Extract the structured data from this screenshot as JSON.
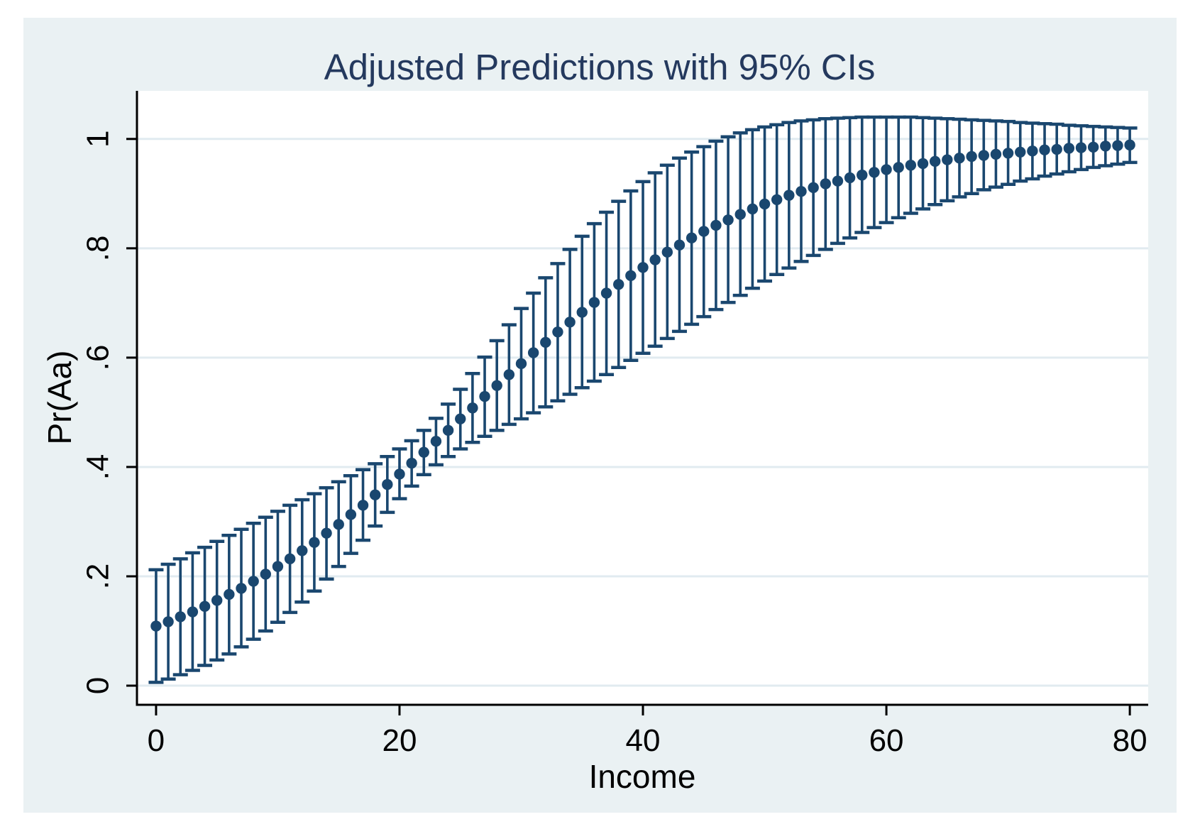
{
  "style": {
    "page_bg": "#ffffff",
    "figure_bg": "#eaf1f3",
    "plot_bg": "#ffffff",
    "grid_color": "#e1ebf0",
    "axis_color": "#000000",
    "tick_label_color": "#000000",
    "title_color": "#24395e",
    "data_color": "#1a476f"
  },
  "chart_data": {
    "type": "scatter",
    "subtype": "point-estimates-with-error-bars",
    "title": "Adjusted Predictions with 95% CIs",
    "xlabel": "Income",
    "ylabel": "Pr(Aa)",
    "ci_level": "95%",
    "grid": "horizontal",
    "legend": "none",
    "xlim": [
      -1.57,
      81.51
    ],
    "ylim": [
      -0.035,
      1.088
    ],
    "x_ticks": [
      0,
      20,
      40,
      60,
      80
    ],
    "x_tick_labels": [
      "0",
      "20",
      "40",
      "60",
      "80"
    ],
    "y_ticks": [
      0,
      0.2,
      0.4,
      0.6,
      0.8,
      1
    ],
    "y_tick_labels": [
      "0",
      ".2",
      ".4",
      ".6",
      ".8",
      "1"
    ],
    "series": [
      {
        "name": "Adjusted Prediction",
        "x": [
          0,
          1,
          2,
          3,
          4,
          5,
          6,
          7,
          8,
          9,
          10,
          11,
          12,
          13,
          14,
          15,
          16,
          17,
          18,
          19,
          20,
          21,
          22,
          23,
          24,
          25,
          26,
          27,
          28,
          29,
          30,
          31,
          32,
          33,
          34,
          35,
          36,
          37,
          38,
          39,
          40,
          41,
          42,
          43,
          44,
          45,
          46,
          47,
          48,
          49,
          50,
          51,
          52,
          53,
          54,
          55,
          56,
          57,
          58,
          59,
          60,
          61,
          62,
          63,
          64,
          65,
          66,
          67,
          68,
          69,
          70,
          71,
          72,
          73,
          74,
          75,
          76,
          77,
          78,
          79,
          80
        ],
        "y": [
          0.109,
          0.117,
          0.126,
          0.135,
          0.145,
          0.156,
          0.167,
          0.178,
          0.191,
          0.204,
          0.218,
          0.232,
          0.247,
          0.262,
          0.279,
          0.295,
          0.313,
          0.33,
          0.349,
          0.368,
          0.387,
          0.407,
          0.427,
          0.447,
          0.467,
          0.488,
          0.508,
          0.529,
          0.549,
          0.569,
          0.589,
          0.609,
          0.628,
          0.647,
          0.665,
          0.683,
          0.701,
          0.718,
          0.734,
          0.75,
          0.765,
          0.779,
          0.793,
          0.806,
          0.819,
          0.831,
          0.842,
          0.852,
          0.862,
          0.872,
          0.881,
          0.889,
          0.897,
          0.904,
          0.911,
          0.918,
          0.923,
          0.929,
          0.934,
          0.939,
          0.944,
          0.948,
          0.952,
          0.955,
          0.959,
          0.962,
          0.965,
          0.968,
          0.97,
          0.972,
          0.974,
          0.976,
          0.978,
          0.98,
          0.981,
          0.983,
          0.984,
          0.985,
          0.987,
          0.988,
          0.989
        ],
        "ci_low": [
          0.006,
          0.012,
          0.02,
          0.028,
          0.037,
          0.047,
          0.058,
          0.071,
          0.085,
          0.1,
          0.116,
          0.134,
          0.153,
          0.173,
          0.195,
          0.218,
          0.242,
          0.266,
          0.292,
          0.317,
          0.342,
          0.365,
          0.386,
          0.404,
          0.419,
          0.433,
          0.445,
          0.456,
          0.467,
          0.478,
          0.488,
          0.499,
          0.51,
          0.521,
          0.533,
          0.545,
          0.557,
          0.569,
          0.582,
          0.595,
          0.608,
          0.621,
          0.635,
          0.648,
          0.661,
          0.675,
          0.688,
          0.701,
          0.714,
          0.727,
          0.74,
          0.752,
          0.764,
          0.776,
          0.787,
          0.798,
          0.809,
          0.819,
          0.829,
          0.838,
          0.847,
          0.856,
          0.864,
          0.872,
          0.88,
          0.887,
          0.894,
          0.9,
          0.907,
          0.912,
          0.917,
          0.923,
          0.927,
          0.932,
          0.936,
          0.94,
          0.944,
          0.948,
          0.951,
          0.954,
          0.957
        ],
        "ci_high": [
          0.212,
          0.222,
          0.232,
          0.243,
          0.253,
          0.264,
          0.275,
          0.286,
          0.297,
          0.308,
          0.319,
          0.33,
          0.34,
          0.351,
          0.362,
          0.373,
          0.384,
          0.395,
          0.406,
          0.419,
          0.433,
          0.448,
          0.467,
          0.489,
          0.515,
          0.542,
          0.571,
          0.601,
          0.631,
          0.66,
          0.69,
          0.718,
          0.746,
          0.772,
          0.798,
          0.822,
          0.845,
          0.866,
          0.886,
          0.905,
          0.922,
          0.938,
          0.952,
          0.965,
          0.976,
          0.986,
          0.996,
          1.004,
          1.011,
          1.017,
          1.022,
          1.026,
          1.03,
          1.033,
          1.035,
          1.037,
          1.038,
          1.039,
          1.04,
          1.04,
          1.04,
          1.04,
          1.04,
          1.039,
          1.038,
          1.037,
          1.036,
          1.035,
          1.034,
          1.033,
          1.032,
          1.03,
          1.029,
          1.028,
          1.027,
          1.025,
          1.024,
          1.023,
          1.022,
          1.021,
          1.02
        ]
      }
    ]
  }
}
